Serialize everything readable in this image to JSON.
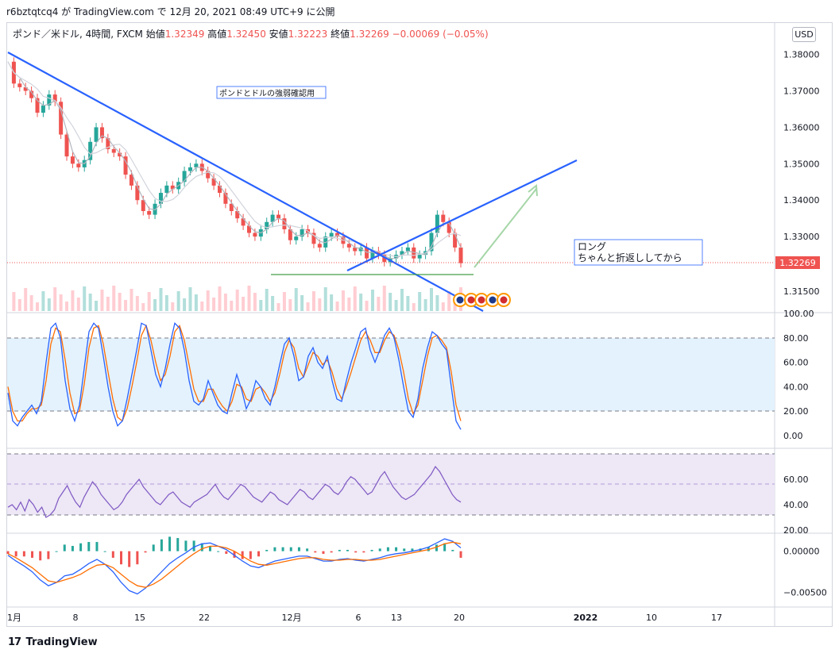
{
  "header": {
    "text": "r6bztqtcq4 が TradingView.com で 12月 20, 2021 08:49 UTC+9 に公開"
  },
  "legend": {
    "symbol": "ポンド／米ドル, 4時間, FXCM",
    "open_label": "始値",
    "open": "1.32349",
    "high_label": "高値",
    "high": "1.32450",
    "low_label": "安値",
    "low": "1.32223",
    "close_label": "終値",
    "close": "1.32269",
    "change": "−0.00069 (−0.05%)"
  },
  "currency_button": "USD",
  "annotations": {
    "note1": "ポンドとドルの強弱確認用",
    "note2_line1": "ロング",
    "note2_line2": "ちゃんと折返ししてから"
  },
  "footer": {
    "brand": "TradingView",
    "logo": "17"
  },
  "colors": {
    "up": "#26a69a",
    "down": "#ef5350",
    "trendline": "#2962ff",
    "stoch_k": "#2962ff",
    "stoch_d": "#ff6d00",
    "rsi": "#7e57c2",
    "price_tag": "#ef5350"
  },
  "chart_data": [
    {
      "type": "line",
      "name": "price",
      "y_ticks": [
        "1.38000",
        "1.37000",
        "1.36000",
        "1.35000",
        "1.34000",
        "1.33000",
        "1.31500"
      ],
      "ylim": [
        1.315,
        1.381
      ],
      "last_price": "1.32269",
      "x_ticks": [
        "1月",
        "8",
        "15",
        "22",
        "12月",
        "6",
        "13",
        "20",
        "2022",
        "10",
        "17"
      ],
      "close_series": [
        1.378,
        1.372,
        1.371,
        1.37,
        1.368,
        1.364,
        1.366,
        1.369,
        1.367,
        1.358,
        1.352,
        1.35,
        1.349,
        1.351,
        1.356,
        1.36,
        1.357,
        1.354,
        1.353,
        1.352,
        1.347,
        1.344,
        1.34,
        1.337,
        1.336,
        1.339,
        1.342,
        1.344,
        1.343,
        1.345,
        1.348,
        1.349,
        1.35,
        1.348,
        1.346,
        1.344,
        1.342,
        1.339,
        1.337,
        1.335,
        1.333,
        1.331,
        1.33,
        1.332,
        1.334,
        1.336,
        1.335,
        1.332,
        1.329,
        1.33,
        1.332,
        1.331,
        1.328,
        1.327,
        1.33,
        1.331,
        1.33,
        1.328,
        1.327,
        1.326,
        1.327,
        1.324,
        1.326,
        1.325,
        1.323,
        1.324,
        1.325,
        1.326,
        1.327,
        1.324,
        1.325,
        1.326,
        1.331,
        1.336,
        1.334,
        1.331,
        1.327,
        1.3227
      ]
    },
    {
      "type": "line",
      "name": "stochastic",
      "y_ticks": [
        "100.00",
        "80.00",
        "60.00",
        "40.00",
        "20.00",
        "0.00"
      ],
      "ylim": [
        0,
        100
      ],
      "k": [
        35,
        12,
        8,
        15,
        20,
        25,
        18,
        28,
        60,
        88,
        92,
        80,
        45,
        22,
        12,
        25,
        55,
        85,
        92,
        88,
        65,
        40,
        20,
        8,
        12,
        30,
        50,
        70,
        92,
        90,
        70,
        50,
        40,
        55,
        75,
        92,
        88,
        70,
        45,
        28,
        25,
        30,
        45,
        35,
        25,
        20,
        18,
        35,
        50,
        38,
        22,
        30,
        45,
        40,
        30,
        25,
        40,
        58,
        75,
        80,
        65,
        45,
        48,
        65,
        72,
        60,
        55,
        65,
        45,
        30,
        28,
        45,
        60,
        72,
        85,
        88,
        70,
        60,
        70,
        82,
        88,
        80,
        62,
        40,
        20,
        15,
        30,
        55,
        72,
        85,
        82,
        75,
        70,
        40,
        12,
        5
      ],
      "d": [
        40,
        20,
        12,
        12,
        18,
        22,
        22,
        25,
        45,
        75,
        88,
        85,
        62,
        35,
        18,
        20,
        42,
        72,
        88,
        90,
        75,
        52,
        30,
        15,
        12,
        22,
        40,
        60,
        82,
        90,
        78,
        60,
        45,
        50,
        65,
        85,
        90,
        78,
        58,
        38,
        28,
        28,
        38,
        38,
        30,
        24,
        20,
        28,
        42,
        40,
        30,
        28,
        38,
        40,
        35,
        28,
        35,
        50,
        68,
        78,
        72,
        55,
        48,
        58,
        68,
        65,
        58,
        62,
        52,
        38,
        30,
        40,
        52,
        65,
        78,
        85,
        78,
        68,
        68,
        78,
        85,
        82,
        70,
        52,
        30,
        18,
        25,
        45,
        65,
        80,
        82,
        78,
        72,
        52,
        25,
        12
      ]
    },
    {
      "type": "line",
      "name": "rsi",
      "y_ticks": [
        "60.00",
        "40.00",
        "20.00"
      ],
      "ylim": [
        20,
        80
      ],
      "values": [
        38,
        40,
        36,
        42,
        35,
        44,
        40,
        34,
        38,
        30,
        32,
        36,
        45,
        50,
        55,
        48,
        42,
        38,
        46,
        52,
        58,
        54,
        48,
        44,
        40,
        36,
        38,
        42,
        48,
        52,
        56,
        60,
        54,
        50,
        46,
        42,
        40,
        44,
        48,
        50,
        46,
        42,
        40,
        38,
        42,
        44,
        46,
        48,
        52,
        56,
        50,
        46,
        44,
        48,
        52,
        56,
        54,
        50,
        46,
        44,
        42,
        46,
        50,
        48,
        44,
        42,
        40,
        44,
        48,
        52,
        50,
        46,
        44,
        48,
        52,
        56,
        54,
        50,
        48,
        52,
        58,
        62,
        60,
        56,
        52,
        48,
        50,
        56,
        62,
        66,
        60,
        54,
        50,
        46,
        44,
        46,
        48,
        52,
        56,
        60,
        64,
        70,
        66,
        60,
        54,
        48,
        44,
        42
      ]
    },
    {
      "type": "line",
      "name": "macd",
      "y_ticks": [
        "0.00000",
        "−0.00500"
      ],
      "ylim": [
        -0.0065,
        0.0018
      ],
      "macd": [
        -0.0005,
        -0.0012,
        -0.0018,
        -0.0025,
        -0.0035,
        -0.0042,
        -0.0038,
        -0.003,
        -0.0028,
        -0.0022,
        -0.0015,
        -0.001,
        -0.0016,
        -0.0025,
        -0.0038,
        -0.0048,
        -0.0052,
        -0.0045,
        -0.0035,
        -0.0025,
        -0.0015,
        -0.0008,
        -0.0002,
        0.0005,
        0.0009,
        0.001,
        0.0006,
        0.0002,
        -0.0005,
        -0.0012,
        -0.0018,
        -0.002,
        -0.0016,
        -0.0012,
        -0.001,
        -0.0008,
        -0.0006,
        -0.0006,
        -0.0009,
        -0.0012,
        -0.0012,
        -0.001,
        -0.0009,
        -0.0011,
        -0.0012,
        -0.001,
        -0.0008,
        -0.0005,
        -0.0003,
        -0.0002,
        0.0,
        0.0002,
        0.0005,
        0.001,
        0.0015,
        0.0012,
        0.0004
      ],
      "signal": [
        -0.0003,
        -0.0008,
        -0.0014,
        -0.002,
        -0.0028,
        -0.0036,
        -0.0038,
        -0.0035,
        -0.0032,
        -0.0028,
        -0.0022,
        -0.0017,
        -0.0016,
        -0.002,
        -0.0028,
        -0.0036,
        -0.0042,
        -0.0044,
        -0.004,
        -0.0034,
        -0.0026,
        -0.0018,
        -0.001,
        -0.0003,
        0.0003,
        0.0006,
        0.0006,
        0.0004,
        0.0,
        -0.0006,
        -0.0012,
        -0.0016,
        -0.0017,
        -0.0015,
        -0.0013,
        -0.0011,
        -0.0009,
        -0.0008,
        -0.0008,
        -0.001,
        -0.0011,
        -0.0011,
        -0.001,
        -0.001,
        -0.0011,
        -0.0011,
        -0.001,
        -0.0008,
        -0.0006,
        -0.0004,
        -0.0002,
        0.0,
        0.0002,
        0.0005,
        0.0009,
        0.0011,
        0.0009
      ]
    }
  ]
}
